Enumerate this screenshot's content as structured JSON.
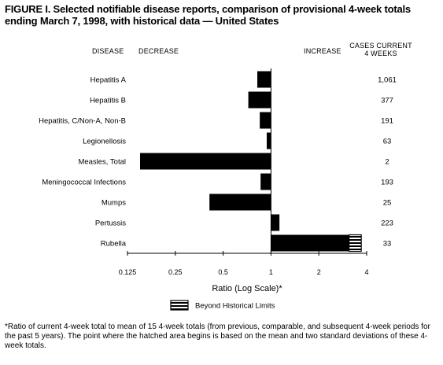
{
  "title_line1": "FIGURE I. Selected notifiable disease reports, comparison of provisional 4-week totals",
  "title_line2": "ending March 7, 1998, with historical data — United States",
  "headers": {
    "disease": "DISEASE",
    "decrease": "DECREASE",
    "increase": "INCREASE",
    "cases_line1": "CASES CURRENT",
    "cases_line2": "4 WEEKS"
  },
  "legend_label": "Beyond Historical Limits",
  "footnote": "*Ratio of current 4-week total to mean of 15 4-week totals (from previous, comparable, and subsequent 4-week periods for the past 5 years). The point where the hatched area begins is based on the mean and two standard deviations of these 4-week totals.",
  "chart_data": {
    "type": "bar",
    "orientation": "horizontal",
    "xlabel": "Ratio (Log Scale)*",
    "x_scale": "log2",
    "xlim": [
      0.125,
      4
    ],
    "ticks": [
      "0.125",
      "0.25",
      "0.5",
      "1",
      "2",
      "4"
    ],
    "tick_values": [
      0.125,
      0.25,
      0.5,
      1,
      2,
      4
    ],
    "baseline": 1,
    "bar_color": "#000000",
    "categories": [
      "Hepatitis A",
      "Hepatitis B",
      "Hepatitis, C/Non-A, Non-B",
      "Legionellosis",
      "Measles, Total",
      "Meningococcal Infections",
      "Mumps",
      "Pertussis",
      "Rubella"
    ],
    "values": [
      0.82,
      0.72,
      0.85,
      0.94,
      0.15,
      0.86,
      0.41,
      1.13,
      3.7
    ],
    "beyond_historical_limits_from": [
      null,
      null,
      null,
      null,
      null,
      null,
      null,
      null,
      3.1
    ],
    "cases": [
      "1,061",
      "377",
      "191",
      "63",
      "2",
      "193",
      "25",
      "223",
      "33"
    ]
  }
}
